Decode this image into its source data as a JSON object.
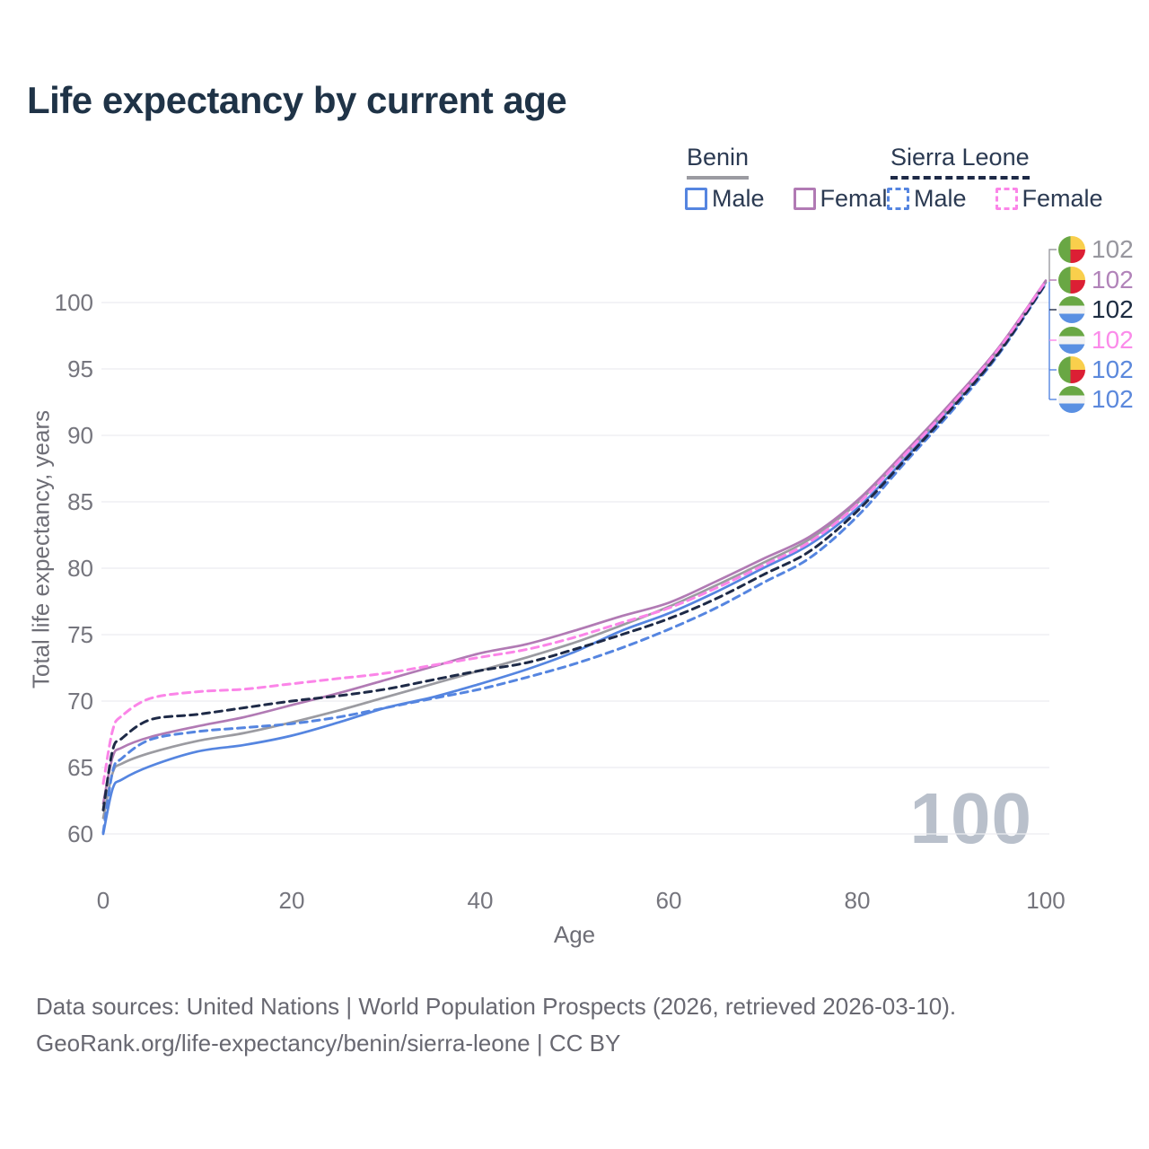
{
  "title": "Life expectancy by current age",
  "legend": {
    "groups": [
      {
        "label": "Benin",
        "items": [
          {
            "label": "Male"
          },
          {
            "label": "Female"
          }
        ]
      },
      {
        "label": "Sierra Leone",
        "items": [
          {
            "label": "Male"
          },
          {
            "label": "Female"
          }
        ]
      }
    ]
  },
  "axes": {
    "y_title": "Total life expectancy, years",
    "y_ticks": [
      "100",
      "95",
      "90",
      "85",
      "80",
      "75",
      "70",
      "65",
      "60"
    ],
    "y_tick_values": [
      100,
      95,
      90,
      85,
      80,
      75,
      70,
      65,
      60
    ],
    "x_title": "Age",
    "x_ticks": [
      "0",
      "20",
      "40",
      "60",
      "80",
      "100"
    ],
    "x_tick_values": [
      0,
      20,
      40,
      60,
      80,
      100
    ]
  },
  "watermark": "100",
  "end_labels": [
    {
      "country": "Benin",
      "series": "Total",
      "value": "102",
      "color": "#97969e"
    },
    {
      "country": "Benin",
      "series": "Female",
      "value": "102",
      "color": "#b183b9"
    },
    {
      "country": "Sierra Leone",
      "series": "Total",
      "value": "102",
      "color": "#1c2b40"
    },
    {
      "country": "Sierra Leone",
      "series": "Female",
      "value": "102",
      "color": "#fb8bea"
    },
    {
      "country": "Benin",
      "series": "Male",
      "value": "102",
      "color": "#5b88dc"
    },
    {
      "country": "Sierra Leone",
      "series": "Male",
      "value": "102",
      "color": "#5b88dc"
    }
  ],
  "footer": {
    "line1": "Data sources: United Nations | World Population Prospects (2026, retrieved 2026-03-10).",
    "line2": "GeoRank.org/life-expectancy/benin/sierra-leone | CC BY"
  },
  "chart_data": {
    "type": "line",
    "title": "Life expectancy by current age",
    "xlabel": "Age",
    "ylabel": "Total life expectancy, years",
    "xlim": [
      0,
      100
    ],
    "ylim": [
      58.5,
      103
    ],
    "grid": "horizontal",
    "x": [
      0,
      1,
      2,
      5,
      10,
      15,
      20,
      25,
      30,
      35,
      40,
      45,
      50,
      55,
      60,
      65,
      70,
      75,
      80,
      85,
      90,
      95,
      100
    ],
    "series": [
      {
        "name": "Benin Total",
        "country": "Benin",
        "sex": "Both",
        "color": "#9b9ba1",
        "dash": "solid",
        "values": [
          61.2,
          64.6,
          65.3,
          66.1,
          67.0,
          67.6,
          68.4,
          69.3,
          70.3,
          71.3,
          72.3,
          73.3,
          74.4,
          75.7,
          77.1,
          78.7,
          80.4,
          82.2,
          84.9,
          88.5,
          92.3,
          96.4,
          101.55
        ]
      },
      {
        "name": "Benin Male",
        "country": "Benin",
        "sex": "Male",
        "color": "#5585e0",
        "dash": "solid",
        "values": [
          60.0,
          63.4,
          64.1,
          65.1,
          66.2,
          66.7,
          67.4,
          68.4,
          69.5,
          70.3,
          71.3,
          72.4,
          73.7,
          75.3,
          76.6,
          78.2,
          80.0,
          81.8,
          84.5,
          88.2,
          92.1,
          96.3,
          101.5
        ]
      },
      {
        "name": "Benin Female",
        "country": "Benin",
        "sex": "Female",
        "color": "#b17ab4",
        "dash": "solid",
        "values": [
          62.3,
          65.8,
          66.5,
          67.3,
          68.1,
          68.8,
          69.7,
          70.6,
          71.6,
          72.6,
          73.6,
          74.3,
          75.3,
          76.4,
          77.4,
          79.0,
          80.7,
          82.4,
          85.1,
          88.7,
          92.5,
          96.6,
          101.65
        ]
      },
      {
        "name": "Sierra Leone Total",
        "country": "Sierra Leone",
        "sex": "Both",
        "color": "#1e2a47",
        "dash": "dashed",
        "values": [
          61.8,
          66.3,
          67.2,
          68.6,
          69.0,
          69.5,
          70.0,
          70.4,
          70.9,
          71.6,
          72.3,
          72.9,
          73.9,
          75.0,
          76.2,
          77.7,
          79.5,
          81.3,
          84.3,
          88.1,
          92.0,
          96.2,
          101.45
        ]
      },
      {
        "name": "Sierra Leone Male",
        "country": "Sierra Leone",
        "sex": "Male",
        "color": "#5585e0",
        "dash": "dashed",
        "values": [
          60.1,
          64.7,
          65.7,
          67.1,
          67.7,
          68.0,
          68.3,
          68.8,
          69.5,
          70.2,
          70.9,
          71.8,
          72.8,
          74.0,
          75.4,
          77.0,
          78.9,
          80.8,
          83.9,
          87.9,
          91.8,
          96.1,
          101.4
        ]
      },
      {
        "name": "Sierra Leone Female",
        "country": "Sierra Leone",
        "sex": "Female",
        "color": "#fb85e8",
        "dash": "dashed",
        "values": [
          63.8,
          67.8,
          68.9,
          70.2,
          70.7,
          70.9,
          71.3,
          71.7,
          72.1,
          72.7,
          73.3,
          73.9,
          74.8,
          75.9,
          77.0,
          78.5,
          80.2,
          82.0,
          84.8,
          88.5,
          92.3,
          96.5,
          101.6
        ]
      }
    ]
  }
}
